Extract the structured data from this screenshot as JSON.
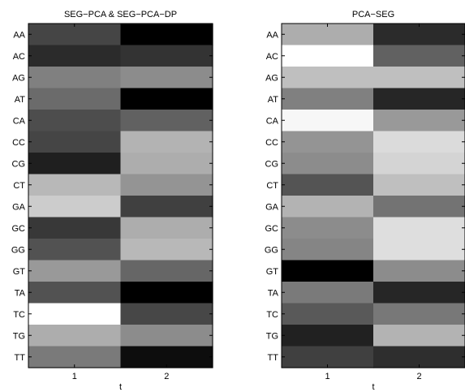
{
  "chart_data": [
    {
      "type": "heatmap",
      "title": "SEG−PCA & SEG−PCA−DP",
      "xlabel": "t",
      "ylabel": "",
      "x": [
        "1",
        "2"
      ],
      "y": [
        "AA",
        "AC",
        "AG",
        "AT",
        "CA",
        "CC",
        "CG",
        "CT",
        "GA",
        "GC",
        "GG",
        "GT",
        "TA",
        "TC",
        "TG",
        "TT"
      ],
      "colormap": "gray",
      "values": [
        [
          0.27,
          0.0
        ],
        [
          0.17,
          0.2
        ],
        [
          0.5,
          0.55
        ],
        [
          0.42,
          0.0
        ],
        [
          0.3,
          0.38
        ],
        [
          0.27,
          0.7
        ],
        [
          0.12,
          0.68
        ],
        [
          0.72,
          0.58
        ],
        [
          0.8,
          0.25
        ],
        [
          0.22,
          0.68
        ],
        [
          0.32,
          0.72
        ],
        [
          0.6,
          0.4
        ],
        [
          0.32,
          0.0
        ],
        [
          1.0,
          0.28
        ],
        [
          0.68,
          0.55
        ],
        [
          0.48,
          0.05
        ]
      ],
      "grid": false
    },
    {
      "type": "heatmap",
      "title": "PCA−SEG",
      "xlabel": "t",
      "ylabel": "",
      "x": [
        "1",
        "2"
      ],
      "y": [
        "AA",
        "AC",
        "AG",
        "AT",
        "CA",
        "CC",
        "CG",
        "CT",
        "GA",
        "GC",
        "GG",
        "GT",
        "TA",
        "TC",
        "TG",
        "TT"
      ],
      "colormap": "gray",
      "values": [
        [
          0.68,
          0.17
        ],
        [
          1.0,
          0.38
        ],
        [
          0.75,
          0.75
        ],
        [
          0.5,
          0.15
        ],
        [
          0.97,
          0.6
        ],
        [
          0.58,
          0.86
        ],
        [
          0.55,
          0.83
        ],
        [
          0.33,
          0.75
        ],
        [
          0.7,
          0.45
        ],
        [
          0.55,
          0.87
        ],
        [
          0.52,
          0.87
        ],
        [
          0.0,
          0.55
        ],
        [
          0.48,
          0.15
        ],
        [
          0.35,
          0.47
        ],
        [
          0.13,
          0.7
        ],
        [
          0.25,
          0.18
        ]
      ],
      "grid": false
    }
  ]
}
